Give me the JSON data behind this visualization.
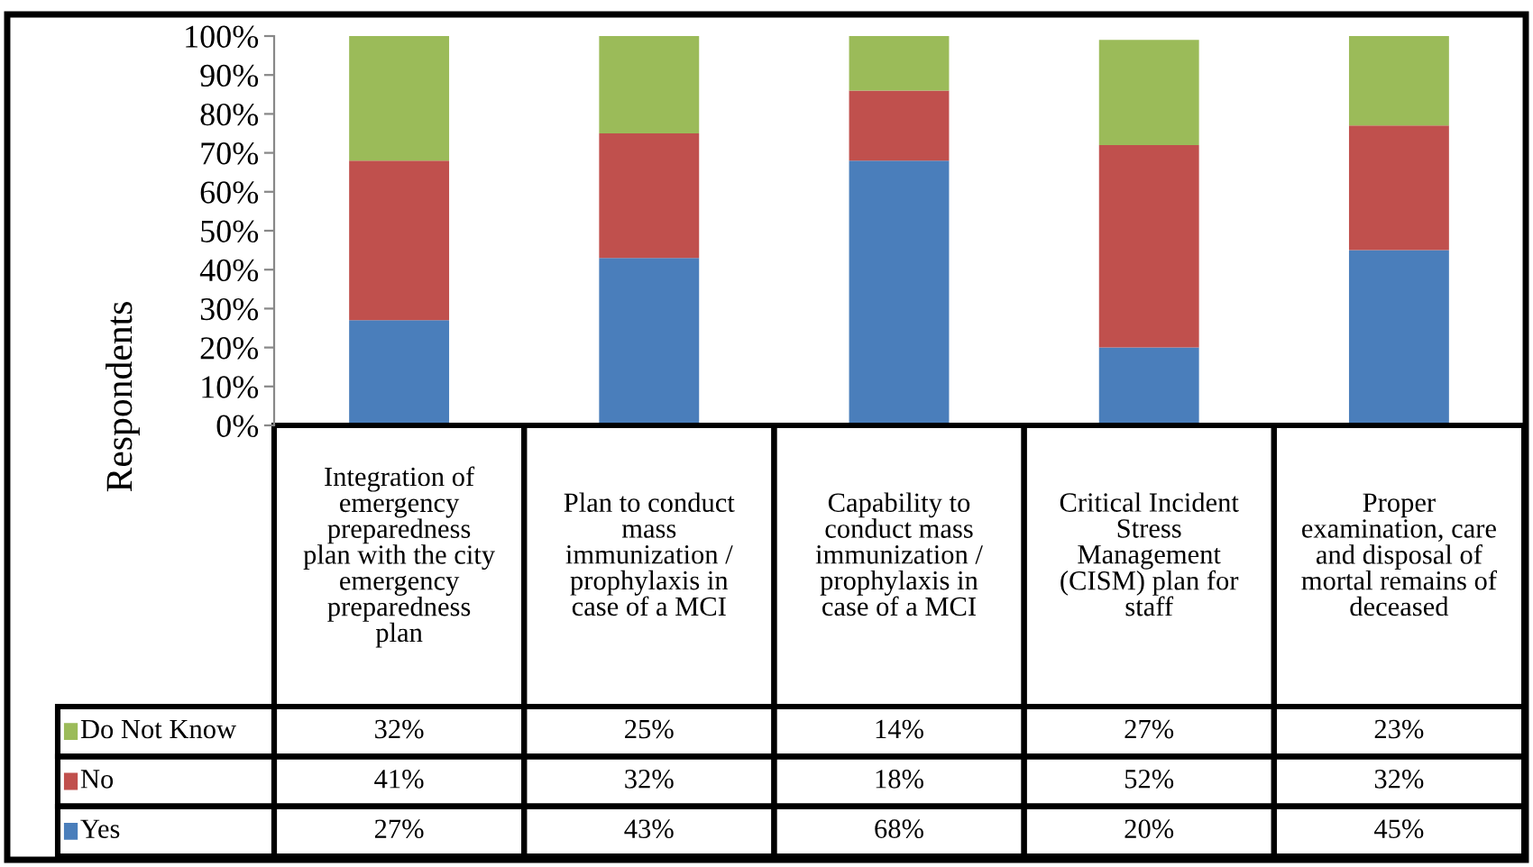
{
  "chart_data": {
    "type": "bar",
    "stacked": true,
    "ylabel": "Respondents",
    "categories": [
      "Integration of\nemergency\npreparedness\nplan with the city\nemergency\npreparedness\nplan",
      "Plan to conduct\nmass\nimmunization /\nprophylaxis in\ncase of a MCI",
      "Capability to\nconduct mass\nimmunization /\nprophylaxis in\ncase of a MCI",
      "Critical Incident\nStress\nManagement\n(CISM) plan for\nstaff",
      "Proper\nexamination, care\nand disposal of\nmortal remains of\ndeceased"
    ],
    "series": [
      {
        "name": "Yes",
        "color": "#4a7ebb",
        "values": [
          27,
          43,
          68,
          20,
          45
        ],
        "value_labels": [
          "27%",
          "43%",
          "68%",
          "20%",
          "45%"
        ]
      },
      {
        "name": "No",
        "color": "#c0504d",
        "values": [
          41,
          32,
          18,
          52,
          32
        ],
        "value_labels": [
          "41%",
          "32%",
          "18%",
          "52%",
          "32%"
        ]
      },
      {
        "name": "Do Not Know",
        "color": "#9bbb59",
        "values": [
          32,
          25,
          14,
          27,
          23
        ],
        "value_labels": [
          "32%",
          "25%",
          "14%",
          "27%",
          "23%"
        ]
      }
    ],
    "ylim": [
      0,
      100
    ],
    "yticks": [
      {
        "value": 0,
        "label": "0%"
      },
      {
        "value": 10,
        "label": "10%"
      },
      {
        "value": 20,
        "label": "20%"
      },
      {
        "value": 30,
        "label": "30%"
      },
      {
        "value": 40,
        "label": "40%"
      },
      {
        "value": 50,
        "label": "50%"
      },
      {
        "value": 60,
        "label": "60%"
      },
      {
        "value": 70,
        "label": "70%"
      },
      {
        "value": 80,
        "label": "80%"
      },
      {
        "value": 90,
        "label": "90%"
      },
      {
        "value": 100,
        "label": "100%"
      }
    ],
    "grid": false,
    "legend": "left"
  }
}
